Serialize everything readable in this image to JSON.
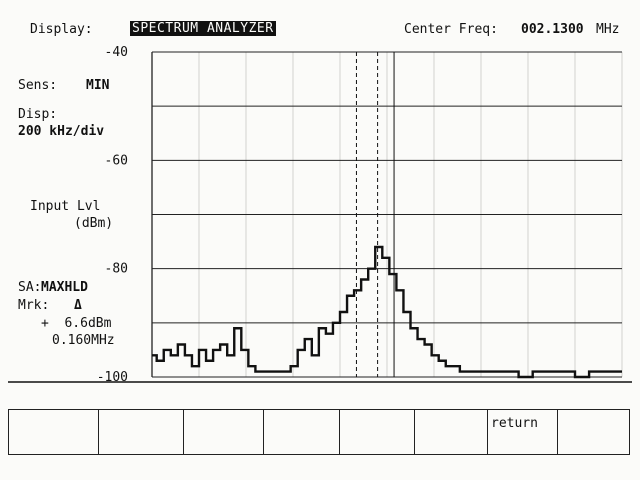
{
  "header": {
    "display_label": "Display:",
    "display_mode": "SPECTRUM ANALYZER",
    "center_freq_label": "Center Freq:",
    "center_freq_value": "002.1300",
    "center_freq_unit": "MHz"
  },
  "side": {
    "sens_label": "Sens:",
    "sens_value": "MIN",
    "disp_label": "Disp:",
    "disp_value": "200 kHz/div",
    "input_lvl_label": "Input Lvl",
    "input_lvl_unit": "(dBm)",
    "sa_label": "SA:",
    "sa_value": "MAXHLD",
    "mrk_label": "Mrk:",
    "mrk_value": "Δ",
    "mrk_level": "+  6.6dBm",
    "mrk_freq": "0.160MHz"
  },
  "chart_data": {
    "type": "line",
    "ylabel": "Input Lvl (dBm)",
    "ylim": [
      -100,
      -40
    ],
    "y_ticks": [
      "-40",
      "-60",
      "-80",
      "-100"
    ],
    "y_tick_values": [
      -40,
      -60,
      -80,
      -100
    ],
    "x_divisions": 10,
    "x_unit": "200 kHz/div",
    "center_freq_mhz": 2.13,
    "grid": true,
    "series": [
      {
        "x": [
          0,
          0.1,
          0.25,
          0.4,
          0.55,
          0.7,
          0.85,
          1.0,
          1.15,
          1.3,
          1.45,
          1.6,
          1.75,
          1.9,
          2.05,
          2.2,
          2.35,
          2.5,
          2.65,
          2.8,
          2.95,
          3.1,
          3.25,
          3.4,
          3.55,
          3.7,
          3.85,
          4.0,
          4.15,
          4.3,
          4.45,
          4.6,
          4.75,
          4.9,
          5.05,
          5.2,
          5.35,
          5.5,
          5.65,
          5.8,
          5.95,
          6.1,
          6.25,
          6.4,
          6.55,
          6.7,
          6.85,
          7.0,
          7.2,
          7.5,
          7.8,
          8.1,
          8.4,
          8.7,
          9.0,
          9.3,
          9.6,
          10.0
        ],
        "y": [
          -96,
          -97,
          -95,
          -96,
          -94,
          -96,
          -98,
          -95,
          -97,
          -95,
          -94,
          -96,
          -91,
          -95,
          -98,
          -99,
          -99,
          -99,
          -99,
          -99,
          -98,
          -95,
          -93,
          -96,
          -91,
          -92,
          -90,
          -88,
          -85,
          -84,
          -82,
          -80,
          -76,
          -78,
          -81,
          -84,
          -88,
          -91,
          -93,
          -94,
          -96,
          -97,
          -98,
          -98,
          -99,
          -99,
          -99,
          -99,
          -99,
          -99,
          -100,
          -99,
          -99,
          -99,
          -100,
          -99,
          -99,
          -99
        ]
      }
    ],
    "marker_lines": [
      {
        "style": "dashed",
        "x": 4.35
      },
      {
        "style": "dashed",
        "x": 4.8
      },
      {
        "style": "solid",
        "x": 5.15
      }
    ]
  },
  "softkeys": [
    "",
    "",
    "",
    "",
    "",
    "",
    "return",
    ""
  ]
}
